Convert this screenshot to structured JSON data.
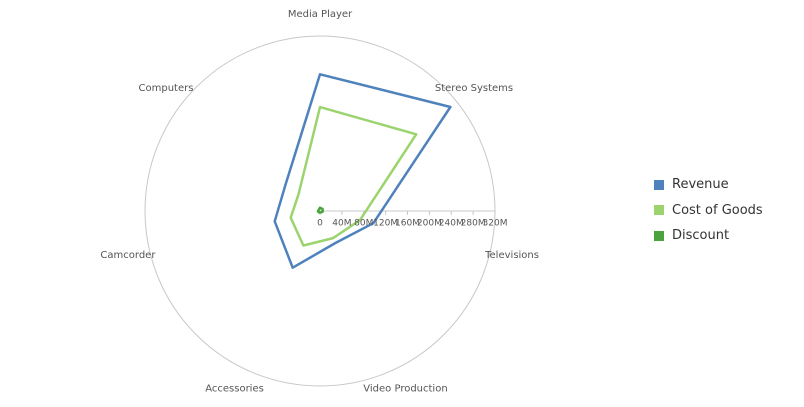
{
  "chart_data": {
    "type": "radar",
    "title": "",
    "categories": [
      "Media Player",
      "Stereo Systems",
      "Televisions",
      "Video Production",
      "Accessories",
      "Camcorder",
      "Computers"
    ],
    "radial_axis": {
      "min": 0,
      "max": 320,
      "unit": "M",
      "ticks": [
        0,
        40,
        80,
        120,
        160,
        200,
        240,
        280,
        320
      ],
      "tick_labels": [
        "0",
        "40M",
        "80M",
        "120M",
        "160M",
        "200M",
        "240M",
        "280M",
        "320M"
      ]
    },
    "series": [
      {
        "name": "Revenue",
        "color": "#4f81bd",
        "values": [
          250,
          305,
          100,
          65,
          115,
          85,
          80
        ]
      },
      {
        "name": "Cost of Goods",
        "color": "#9bd46f",
        "values": [
          190,
          225,
          75,
          55,
          70,
          55,
          50
        ]
      },
      {
        "name": "Discount",
        "color": "#4aa33c",
        "values": [
          6,
          6,
          5,
          3,
          3,
          4,
          3
        ]
      }
    ],
    "legend_position": "right"
  }
}
